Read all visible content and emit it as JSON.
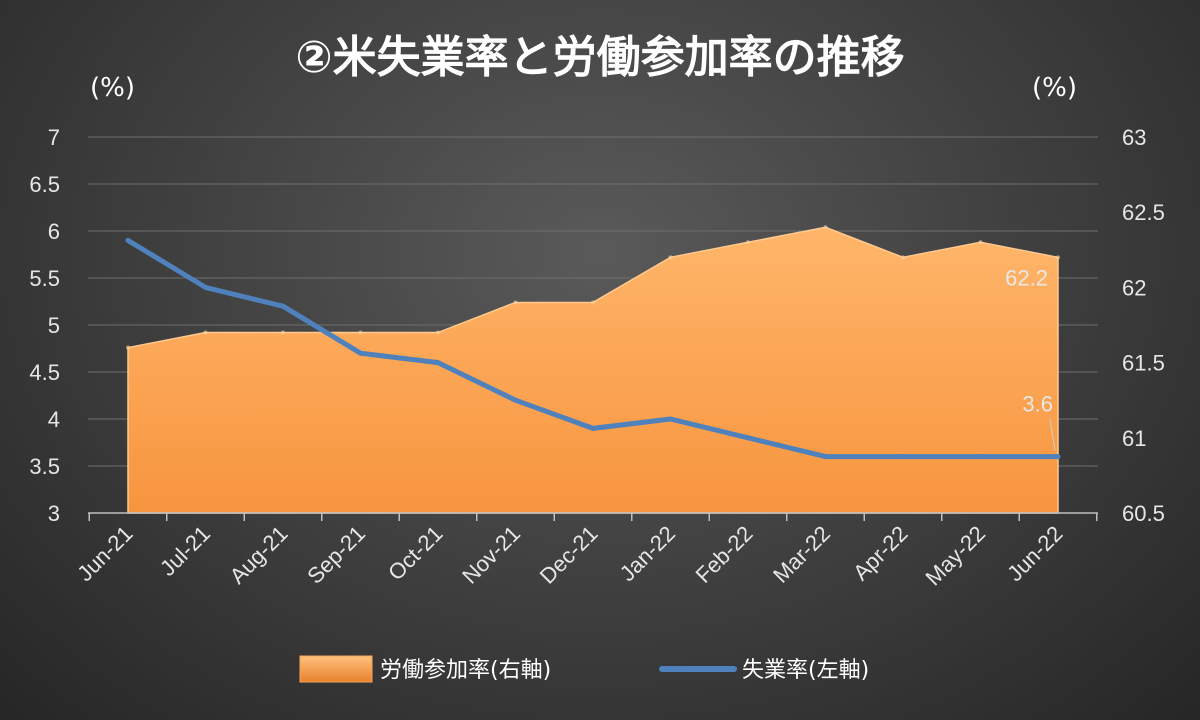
{
  "chart_data": {
    "type": "area+line",
    "title": "②米失業率と労働参加率の推移",
    "left_unit": "(%)",
    "right_unit": "(%)",
    "categories": [
      "Jun-21",
      "Jul-21",
      "Aug-21",
      "Sep-21",
      "Oct-21",
      "Nov-21",
      "Dec-21",
      "Jan-22",
      "Feb-22",
      "Mar-22",
      "Apr-22",
      "May-22",
      "Jun-22"
    ],
    "left_axis": {
      "min": 3,
      "max": 7,
      "step": 0.5,
      "ticks": [
        "3",
        "3.5",
        "4",
        "4.5",
        "5",
        "5.5",
        "6",
        "6.5",
        "7"
      ]
    },
    "right_axis": {
      "min": 60.5,
      "max": 63,
      "step": 0.5,
      "ticks": [
        "60.5",
        "61",
        "61.5",
        "62",
        "62.5",
        "63"
      ]
    },
    "grid": true,
    "legend_position": "bottom",
    "series": [
      {
        "name": "労働参加率(右軸)",
        "type": "area",
        "axis": "right",
        "color": "#f79646",
        "values": [
          61.6,
          61.7,
          61.7,
          61.7,
          61.7,
          61.9,
          61.9,
          62.2,
          62.3,
          62.4,
          62.2,
          62.3,
          62.2
        ],
        "last_label": "62.2"
      },
      {
        "name": "失業率(左軸)",
        "type": "line",
        "axis": "left",
        "color": "#4f81bd",
        "values": [
          5.9,
          5.4,
          5.2,
          4.7,
          4.6,
          4.2,
          3.9,
          4.0,
          3.8,
          3.6,
          3.6,
          3.6,
          3.6
        ],
        "last_label": "3.6"
      }
    ]
  }
}
